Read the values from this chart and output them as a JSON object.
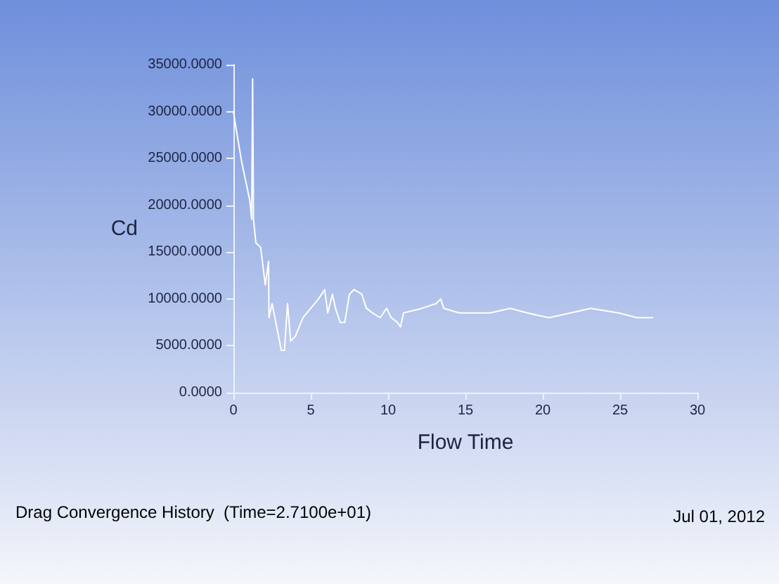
{
  "chart_data": {
    "type": "line",
    "title": "Drag Convergence History  (Time=2.7100e+01)",
    "xlabel": "Flow Time",
    "ylabel": "Cd",
    "annotations": [
      "Jul 01, 2012"
    ],
    "xlim": [
      0,
      30
    ],
    "xticks": [
      0,
      5,
      10,
      15,
      20,
      25,
      30
    ],
    "ylim": [
      0,
      35000
    ],
    "yticks": [
      {
        "value": 0,
        "label": "0.0000"
      },
      {
        "value": 5000,
        "label": "5000.0000"
      },
      {
        "value": 10000,
        "label": "10000.0000"
      },
      {
        "value": 15000,
        "label": "15000.0000"
      },
      {
        "value": 20000,
        "label": "20000.0000"
      },
      {
        "value": 25000,
        "label": "25000.0000"
      },
      {
        "value": 30000,
        "label": "30000.0000"
      },
      {
        "value": 35000,
        "label": "35000.0000"
      }
    ],
    "grid": false,
    "marker": "none",
    "line_style": "solid",
    "series": [
      {
        "color": "#ffffff",
        "x": [
          0,
          0.24,
          0.55,
          1.06,
          1.18,
          1.24,
          1.3,
          1.45,
          1.76,
          2.06,
          2.27,
          2.3,
          2.5,
          2.8,
          3.1,
          3.3,
          3.5,
          3.7,
          4.0,
          4.5,
          5.0,
          5.5,
          5.9,
          6.1,
          6.4,
          6.6,
          6.9,
          7.2,
          7.5,
          7.8,
          8.3,
          8.6,
          9.0,
          9.5,
          9.9,
          10.2,
          10.6,
          10.8,
          11.0,
          12.2,
          13.1,
          13.4,
          13.6,
          14.6,
          15.7,
          16.6,
          17.9,
          19.0,
          20.4,
          21.8,
          23.1,
          24.9,
          26.1,
          27.1
        ],
        "values": [
          30000,
          27500,
          24500,
          20500,
          18500,
          33500,
          18500,
          16000,
          15500,
          11500,
          14000,
          8000,
          9500,
          7000,
          4500,
          4500,
          9500,
          5500,
          6000,
          8000,
          9000,
          10000,
          11000,
          8500,
          10500,
          9000,
          7500,
          7500,
          10500,
          11000,
          10500,
          9000,
          8500,
          8000,
          9000,
          8000,
          7500,
          7000,
          8500,
          9000,
          9500,
          10000,
          9000,
          8500,
          8500,
          8500,
          9000,
          8500,
          8000,
          8500,
          9000,
          8500,
          8000,
          8000
        ]
      }
    ]
  }
}
